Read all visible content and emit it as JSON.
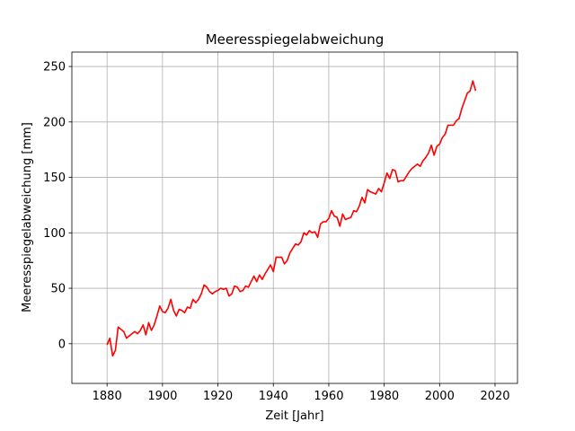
{
  "chart_data": {
    "type": "line",
    "title": "Meeresspiegelabweichung",
    "xlabel": "Zeit [Jahr]",
    "ylabel": "Meeresspiegelabweichung [mm]",
    "x": [
      1880,
      1881,
      1882,
      1883,
      1884,
      1885,
      1886,
      1887,
      1888,
      1889,
      1890,
      1891,
      1892,
      1893,
      1894,
      1895,
      1896,
      1897,
      1898,
      1899,
      1900,
      1901,
      1902,
      1903,
      1904,
      1905,
      1906,
      1907,
      1908,
      1909,
      1910,
      1911,
      1912,
      1913,
      1914,
      1915,
      1916,
      1917,
      1918,
      1919,
      1920,
      1921,
      1922,
      1923,
      1924,
      1925,
      1926,
      1927,
      1928,
      1929,
      1930,
      1931,
      1932,
      1933,
      1934,
      1935,
      1936,
      1937,
      1938,
      1939,
      1940,
      1941,
      1942,
      1943,
      1944,
      1945,
      1946,
      1947,
      1948,
      1949,
      1950,
      1951,
      1952,
      1953,
      1954,
      1955,
      1956,
      1957,
      1958,
      1959,
      1960,
      1961,
      1962,
      1963,
      1964,
      1965,
      1966,
      1967,
      1968,
      1969,
      1970,
      1971,
      1972,
      1973,
      1974,
      1975,
      1976,
      1977,
      1978,
      1979,
      1980,
      1981,
      1982,
      1983,
      1984,
      1985,
      1986,
      1987,
      1988,
      1989,
      1990,
      1991,
      1992,
      1993,
      1994,
      1995,
      1996,
      1997,
      1998,
      1999,
      2000,
      2001,
      2002,
      2003,
      2004,
      2005,
      2006,
      2007,
      2008,
      2009,
      2010,
      2011,
      2012,
      2013
    ],
    "series": [
      {
        "name": "Meeresspiegelabweichung",
        "color": "#ff0000",
        "values": [
          -1,
          5,
          -11,
          -6,
          15,
          13,
          11,
          5,
          7,
          9,
          11,
          9,
          12,
          17,
          8,
          19,
          12,
          17,
          25,
          34,
          29,
          28,
          32,
          40,
          30,
          25,
          31,
          30,
          28,
          33,
          32,
          40,
          37,
          40,
          45,
          53,
          51,
          47,
          45,
          47,
          48,
          50,
          49,
          50,
          43,
          45,
          52,
          51,
          47,
          48,
          52,
          51,
          56,
          61,
          56,
          62,
          58,
          63,
          67,
          71,
          65,
          78,
          78,
          78,
          72,
          75,
          82,
          86,
          90,
          89,
          92,
          100,
          98,
          102,
          100,
          101,
          96,
          108,
          110,
          110,
          113,
          120,
          115,
          114,
          106,
          117,
          112,
          113,
          114,
          120,
          119,
          124,
          132,
          127,
          139,
          137,
          136,
          135,
          140,
          137,
          145,
          154,
          149,
          157,
          156,
          146,
          147,
          147,
          151,
          155,
          158,
          160,
          162,
          160,
          165,
          168,
          172,
          179,
          170,
          178,
          180,
          186,
          189,
          197,
          197,
          197,
          201,
          203,
          212,
          219,
          226,
          228,
          237,
          228
        ]
      }
    ],
    "xlim": [
      1867.3,
      2028.1
    ],
    "ylim": [
      -35.8,
      263
    ],
    "xticks": [
      1880,
      1900,
      1920,
      1940,
      1960,
      1980,
      2000,
      2020
    ],
    "yticks": [
      0,
      50,
      100,
      150,
      200,
      250
    ],
    "grid": true
  }
}
